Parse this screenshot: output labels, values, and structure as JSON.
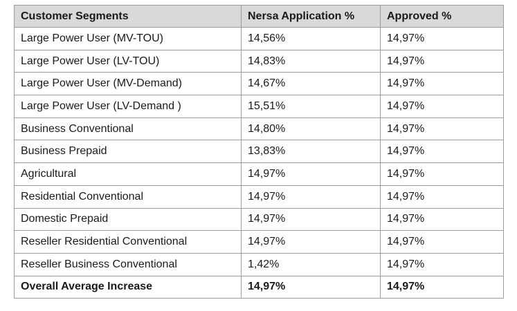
{
  "table": {
    "headers": [
      "Customer Segments",
      "Nersa Application %",
      "Approved %"
    ],
    "rows": [
      [
        "Large Power User (MV-TOU)",
        "14,56%",
        "14,97%"
      ],
      [
        "Large Power User (LV-TOU)",
        "14,83%",
        "14,97%"
      ],
      [
        "Large Power User (MV-Demand)",
        "14,67%",
        "14,97%"
      ],
      [
        "Large Power User (LV-Demand )",
        "15,51%",
        "14,97%"
      ],
      [
        "Business Conventional",
        "14,80%",
        "14,97%"
      ],
      [
        "Business Prepaid",
        "13,83%",
        "14,97%"
      ],
      [
        "Agricultural",
        "14,97%",
        "14,97%"
      ],
      [
        "Residential Conventional",
        "14,97%",
        "14,97%"
      ],
      [
        "Domestic Prepaid",
        "14,97%",
        "14,97%"
      ],
      [
        "Reseller Residential Conventional",
        "14,97%",
        "14,97%"
      ],
      [
        "Reseller Business Conventional",
        "1,42%",
        "14,97%"
      ]
    ],
    "total": [
      "Overall Average Increase",
      "14,97%",
      "14,97%"
    ]
  },
  "colors": {
    "header_background": "#d9d9d9",
    "border": "#9a9a9a",
    "text": "#1a1a1a"
  }
}
